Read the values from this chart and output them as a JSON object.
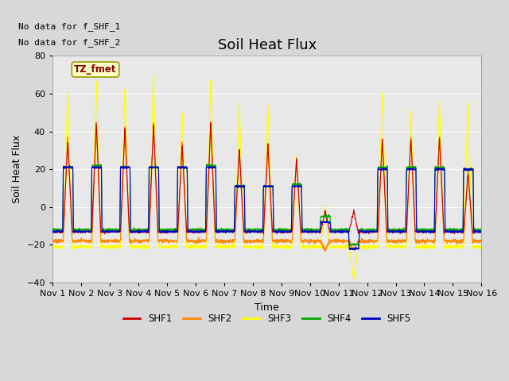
{
  "title": "Soil Heat Flux",
  "xlabel": "Time",
  "ylabel": "Soil Heat Flux",
  "ylim": [
    -40,
    80
  ],
  "yticks": [
    -40,
    -20,
    0,
    20,
    40,
    60,
    80
  ],
  "xlim": [
    0,
    15
  ],
  "xtick_labels": [
    "Nov 1",
    "Nov 2",
    "Nov 3",
    "Nov 4",
    "Nov 5",
    "Nov 6",
    "Nov 7",
    "Nov 8",
    "Nov 9",
    "Nov 10",
    "Nov 11",
    "Nov 12",
    "Nov 13",
    "Nov 14",
    "Nov 15",
    "Nov 16"
  ],
  "note1": "No data for f_SHF_1",
  "note2": "No data for f_SHF_2",
  "legend_box_label": "TZ_fmet",
  "legend_entries": [
    "SHF1",
    "SHF2",
    "SHF3",
    "SHF4",
    "SHF5"
  ],
  "line_colors": [
    "#cc0000",
    "#ff8800",
    "#ffff00",
    "#00aa00",
    "#0000cc"
  ],
  "bg_color": "#d8d8d8",
  "plot_bg_color": "#e0e0e0",
  "title_fontsize": 13,
  "axis_fontsize": 9,
  "tick_fontsize": 8
}
